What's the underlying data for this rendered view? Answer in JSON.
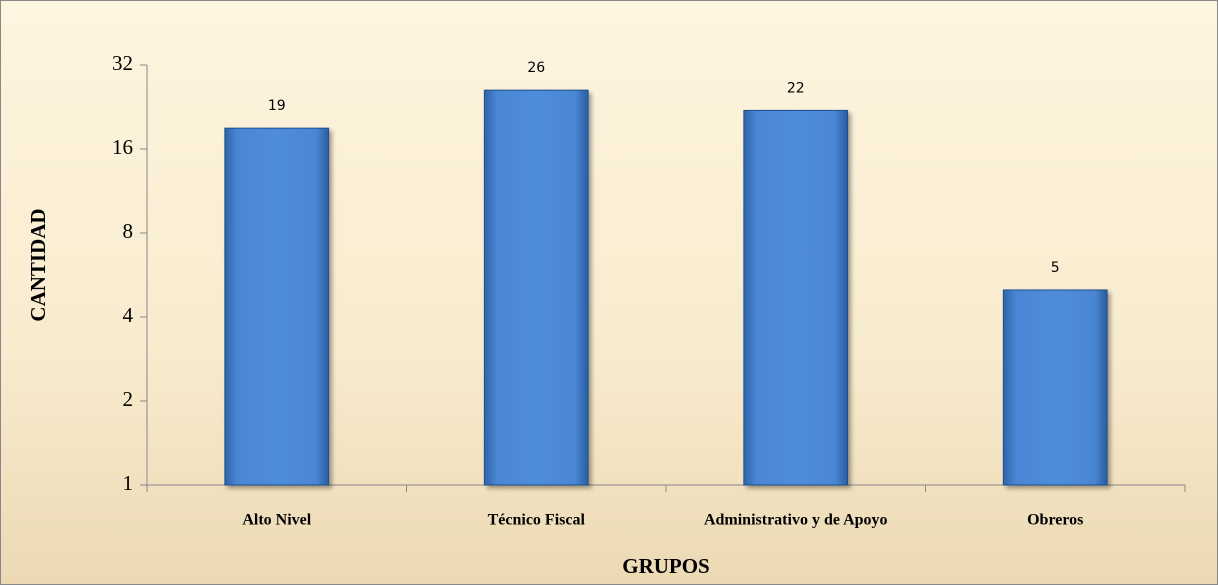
{
  "chart_data": {
    "type": "bar",
    "categories": [
      "Alto Nivel",
      "Técnico Fiscal",
      "Administrativo y de Apoyo",
      "Obreros"
    ],
    "values": [
      19,
      26,
      22,
      5
    ],
    "color": "#4a86d4",
    "ylim": [
      1,
      32
    ],
    "yticks": [
      1,
      2,
      4,
      8,
      16,
      32
    ],
    "log_scale": true,
    "y_label": "CANTIDAD",
    "x_label": "GRUPOS"
  }
}
